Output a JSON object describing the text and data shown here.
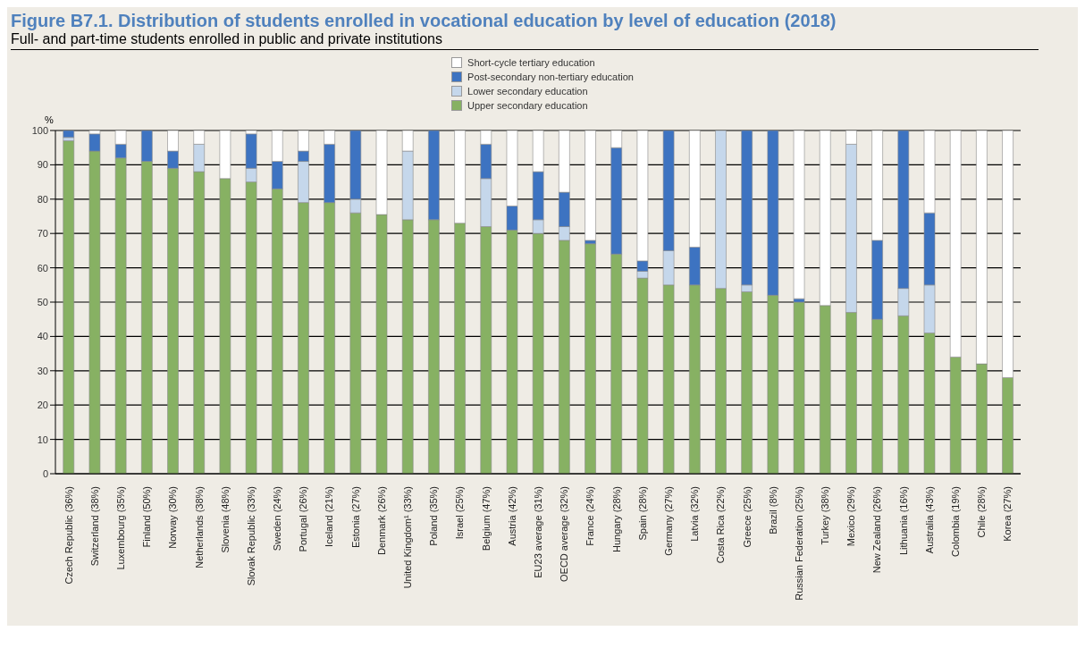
{
  "chart_data": {
    "type": "bar",
    "title": "Figure B7.1. Distribution of students enrolled in vocational education by level of education (2018)",
    "subtitle": "Full- and part-time students enrolled in public and private institutions",
    "ylabel": "%",
    "categories": [
      "Czech Republic (36%)",
      "Switzerland (38%)",
      "Luxembourg (35%)",
      "Finland (50%)",
      "Norway (30%)",
      "Netherlands (38%)",
      "Slovenia (48%)",
      "Slovak Republic (33%)",
      "Sweden (24%)",
      "Portugal (26%)",
      "Iceland (21%)",
      "Estonia (27%)",
      "Denmark (26%)",
      "United Kingdom¹ (33%)",
      "Poland (35%)",
      "Israel (25%)",
      "Belgium (47%)",
      "Austria (42%)",
      "EU23 average (31%)",
      "OECD average (32%)",
      "France (24%)",
      "Hungary (28%)",
      "Spain (28%)",
      "Germany (27%)",
      "Latvia (32%)",
      "Costa Rica (22%)",
      "Greece (25%)",
      "Brazil (8%)",
      "Russian Federation (25%)",
      "Turkey (38%)",
      "Mexico (29%)",
      "New Zealand (26%)",
      "Lithuania (16%)",
      "Australia (43%)",
      "Colombia (19%)",
      "Chile (28%)",
      "Korea (27%)"
    ],
    "stacked": true,
    "series": [
      {
        "name": "Upper secondary education",
        "color": "#87b163",
        "values": [
          97,
          94,
          92,
          91,
          89,
          88,
          86,
          85,
          83,
          79,
          79,
          76,
          75.5,
          74,
          74,
          73,
          72,
          71,
          70,
          68,
          67,
          64,
          57,
          55,
          55,
          54,
          53,
          52,
          50,
          49,
          47,
          45,
          46,
          41,
          34,
          32,
          28
        ]
      },
      {
        "name": "Lower secondary education",
        "color": "#c5d7eb",
        "values": [
          1,
          0,
          0,
          0,
          0,
          8,
          0,
          4,
          0,
          12,
          0,
          4,
          0,
          20,
          0,
          0,
          14,
          0,
          4,
          4,
          0,
          0,
          2,
          10,
          0,
          46,
          2,
          0,
          0,
          0,
          49,
          0,
          8,
          14,
          0,
          0,
          0
        ]
      },
      {
        "name": "Post-secondary non-tertiary education",
        "color": "#3d73c1",
        "values": [
          2,
          5,
          4,
          9,
          5,
          0,
          0,
          10,
          8,
          3,
          17,
          20,
          0,
          0,
          26,
          0,
          10,
          7,
          14,
          10,
          1,
          31,
          3,
          35,
          11,
          0,
          45,
          48,
          1,
          0,
          0,
          23,
          46,
          21,
          0,
          0,
          0
        ]
      },
      {
        "name": "Short-cycle tertiary education",
        "color": "#ffffff",
        "values": [
          0,
          1,
          4,
          0,
          6,
          4,
          14,
          1,
          9,
          6,
          4,
          0,
          24.5,
          6,
          0,
          27,
          4,
          22,
          12,
          18,
          32,
          5,
          38,
          0,
          34,
          0,
          0,
          0,
          49,
          51,
          4,
          32,
          0,
          24,
          66,
          68,
          72
        ]
      }
    ],
    "ylim": [
      0,
      100
    ],
    "yticks": [
      0,
      10,
      20,
      30,
      40,
      50,
      60,
      70,
      80,
      90,
      100
    ],
    "grid": "y",
    "legend": "top"
  }
}
